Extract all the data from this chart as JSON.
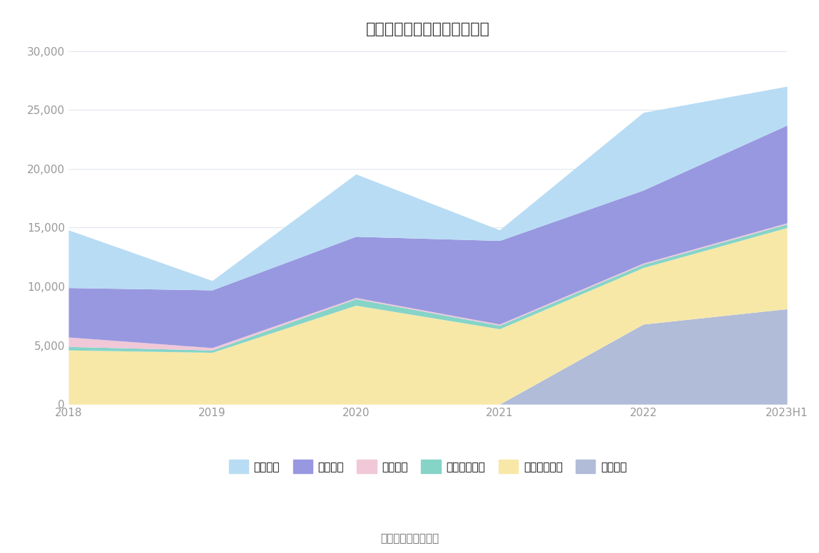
{
  "title": "历年主要负债堆积图（万元）",
  "source": "数据来源：恒生聚源",
  "x_labels": [
    "2018",
    "2019",
    "2020",
    "2021",
    "2022",
    "2023H1"
  ],
  "series": [
    {
      "name": "长期借款",
      "color": "#b0bcd8",
      "values": [
        0,
        0,
        0,
        0,
        6800,
        8100
      ]
    },
    {
      "name": "其他流动负债",
      "color": "#f7e8a8",
      "values": [
        4600,
        4400,
        8400,
        6400,
        4800,
        6900
      ]
    },
    {
      "name": "应付职工薪酬",
      "color": "#86d4c8",
      "values": [
        300,
        200,
        550,
        300,
        280,
        300
      ]
    },
    {
      "name": "预收款项",
      "color": "#f0c8d8",
      "values": [
        800,
        200,
        100,
        100,
        100,
        100
      ]
    },
    {
      "name": "应付账款",
      "color": "#9898e0",
      "values": [
        4200,
        4900,
        5200,
        7100,
        6200,
        8300
      ]
    },
    {
      "name": "短期借款",
      "color": "#b8dcf4",
      "values": [
        4900,
        800,
        5300,
        900,
        6600,
        3300
      ]
    }
  ],
  "ylim": [
    0,
    30000
  ],
  "yticks": [
    0,
    5000,
    10000,
    15000,
    20000,
    25000,
    30000
  ],
  "ytick_labels": [
    "0",
    "5,000",
    "10,000",
    "15,000",
    "20,000",
    "25,000",
    "30,000"
  ],
  "background_color": "#ffffff",
  "grid_color": "#e2e6ee",
  "title_fontsize": 16,
  "tick_fontsize": 11,
  "legend_fontsize": 11
}
